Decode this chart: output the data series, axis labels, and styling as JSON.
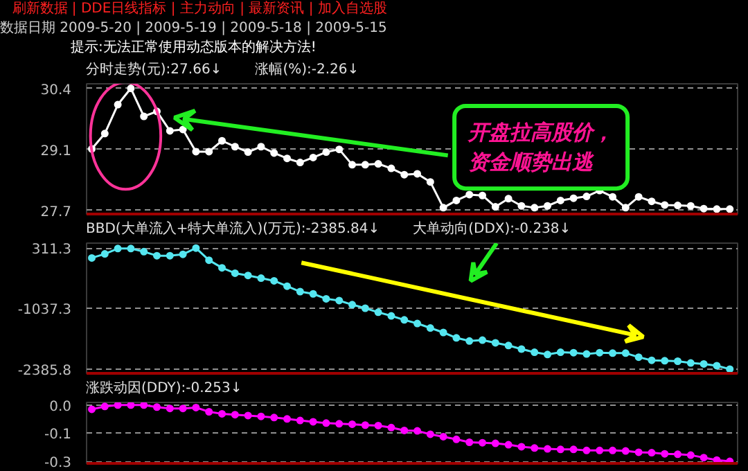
{
  "chart_data": [
    {
      "type": "other",
      "annotations": [
        "刷新数据 | DDE日线指标 | 主力动向 | 最新资讯 | 加入自选股",
        "数据日期 2009-5-20 | 2009-5-19 | 2009-5-18 | 2009-5-15",
        "提示:无法正常使用动态版本的解决方法!"
      ]
    },
    {
      "type": "line",
      "title": "分时走势(元):27.66↓",
      "subtitle": "涨幅(%):-2.26↓",
      "categories": [
        null,
        null,
        null,
        null,
        null,
        null,
        null,
        null,
        null,
        null,
        null,
        null,
        null,
        null,
        null,
        null,
        null,
        null,
        null,
        null,
        null,
        null,
        null,
        null,
        null,
        null,
        null,
        null,
        null,
        null,
        null,
        null,
        null,
        null,
        null,
        null,
        null,
        null,
        null,
        null,
        null,
        null,
        null,
        null,
        null,
        null,
        null,
        null,
        null,
        null
      ],
      "series": [
        {
          "color": "#ffffff",
          "values": [
            29.06,
            29.4,
            30.04,
            30.4,
            29.78,
            29.89,
            29.46,
            29.49,
            29.0,
            29.0,
            29.24,
            29.11,
            28.99,
            29.11,
            28.97,
            28.85,
            28.76,
            28.87,
            28.99,
            29.05,
            28.71,
            28.71,
            28.73,
            28.63,
            28.49,
            28.51,
            28.33,
            27.76,
            27.92,
            28.05,
            28.03,
            27.78,
            27.96,
            27.8,
            27.76,
            27.8,
            27.92,
            27.97,
            28.01,
            28.14,
            28.0,
            27.76,
            28.0,
            27.9,
            27.82,
            27.81,
            27.8,
            27.74,
            27.73,
            27.73
          ]
        }
      ],
      "ylim": [
        27.62,
        30.5
      ],
      "yticks": [
        30.4,
        {
          "value": 29.05,
          "label": "29.1"
        },
        27.7
      ],
      "grid": "y",
      "marker": "circle",
      "tick_labels": "y",
      "annotations": [
        "开盘拉高股价，",
        "资金顺势出逃"
      ]
    },
    {
      "type": "line",
      "title": "BBD(大单流入+特大单流入)(万元):-2385.84↓",
      "subtitle": "大单动向(DDX):-0.238↓",
      "categories": [
        null,
        null,
        null,
        null,
        null,
        null,
        null,
        null,
        null,
        null,
        null,
        null,
        null,
        null,
        null,
        null,
        null,
        null,
        null,
        null,
        null,
        null,
        null,
        null,
        null,
        null,
        null,
        null,
        null,
        null,
        null,
        null,
        null,
        null,
        null,
        null,
        null,
        null,
        null,
        null,
        null,
        null,
        null,
        null,
        null,
        null,
        null,
        null,
        null,
        null
      ],
      "series": [
        {
          "color": "#55e6f0",
          "values": [
            90,
            180,
            300,
            300,
            230,
            140,
            140,
            170,
            310,
            40,
            -130,
            -250,
            -300,
            -360,
            -420,
            -540,
            -660,
            -710,
            -820,
            -860,
            -950,
            -1030,
            -1120,
            -1200,
            -1290,
            -1370,
            -1470,
            -1570,
            -1690,
            -1760,
            -1740,
            -1800,
            -1860,
            -1940,
            -2010,
            -2060,
            -2010,
            -2020,
            -2050,
            -2020,
            -2030,
            -2030,
            -2120,
            -2190,
            -2200,
            -2210,
            -2250,
            -2270,
            -2310,
            -2386
          ]
        }
      ],
      "ylim": [
        -2480,
        420
      ],
      "yticks": [
        311.3,
        {
          "value": -1037.25,
          "label": "-1037.3"
        },
        -2385.8
      ],
      "grid": "y",
      "marker": "circle",
      "tick_labels": "y"
    },
    {
      "type": "line",
      "title": "涨跌动因(DDY):-0.253↓",
      "categories": [
        null,
        null,
        null,
        null,
        null,
        null,
        null,
        null,
        null,
        null,
        null,
        null,
        null,
        null,
        null,
        null,
        null,
        null,
        null,
        null,
        null,
        null,
        null,
        null,
        null,
        null,
        null,
        null,
        null,
        null,
        null,
        null,
        null,
        null,
        null,
        null,
        null,
        null,
        null,
        null,
        null,
        null,
        null,
        null,
        null,
        null,
        null,
        null,
        null,
        null
      ],
      "series": [
        {
          "color": "#ff00ff",
          "values": [
            -0.019,
            -0.006,
            0.0,
            0.0,
            0.0,
            -0.009,
            -0.015,
            -0.015,
            -0.011,
            -0.03,
            -0.039,
            -0.043,
            -0.047,
            -0.051,
            -0.056,
            -0.062,
            -0.069,
            -0.075,
            -0.081,
            -0.084,
            -0.086,
            -0.09,
            -0.092,
            -0.101,
            -0.114,
            -0.116,
            -0.131,
            -0.142,
            -0.154,
            -0.167,
            -0.169,
            -0.172,
            -0.178,
            -0.187,
            -0.193,
            -0.197,
            -0.199,
            -0.199,
            -0.204,
            -0.204,
            -0.204,
            -0.206,
            -0.212,
            -0.214,
            -0.219,
            -0.221,
            -0.225,
            -0.236,
            -0.247,
            -0.253
          ]
        }
      ],
      "ylim": [
        -0.262,
        0.012
      ],
      "yticks": [
        {
          "value": 0.0,
          "label": "0.0"
        },
        {
          "value": -0.1265,
          "label": "-0.1"
        },
        {
          "value": -0.253,
          "label": "-0.3"
        }
      ],
      "grid": "y",
      "marker": "circle",
      "tick_labels": "y"
    }
  ]
}
